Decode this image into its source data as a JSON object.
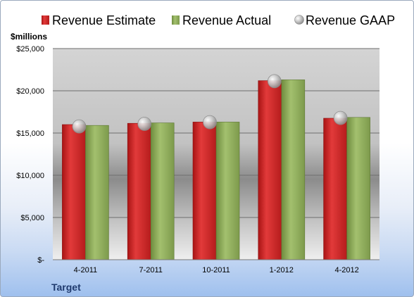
{
  "chart_data": {
    "type": "bar",
    "company": "Target",
    "unit_label": "$millions",
    "categories": [
      "4-2011",
      "7-2011",
      "10-2011",
      "1-2012",
      "4-2012"
    ],
    "series": [
      {
        "name": "Revenue Estimate",
        "values": [
          16000,
          16150,
          16300,
          21200,
          16750
        ],
        "color": "#d52b2b"
      },
      {
        "name": "Revenue Actual",
        "values": [
          15900,
          16200,
          16300,
          21300,
          16850
        ],
        "color": "#8fad5c"
      },
      {
        "name": "Revenue GAAP",
        "values": [
          15950,
          16250,
          16450,
          21300,
          16950
        ],
        "color": "#b8b8b8"
      }
    ],
    "ylim": [
      0,
      25000
    ],
    "yticks": [
      0,
      5000,
      10000,
      15000,
      20000,
      25000
    ],
    "ytick_labels": [
      "$-",
      "$5,000",
      "$10,000",
      "$15,000",
      "$20,000",
      "$25,000"
    ],
    "grid": true,
    "legend_position": "top"
  }
}
